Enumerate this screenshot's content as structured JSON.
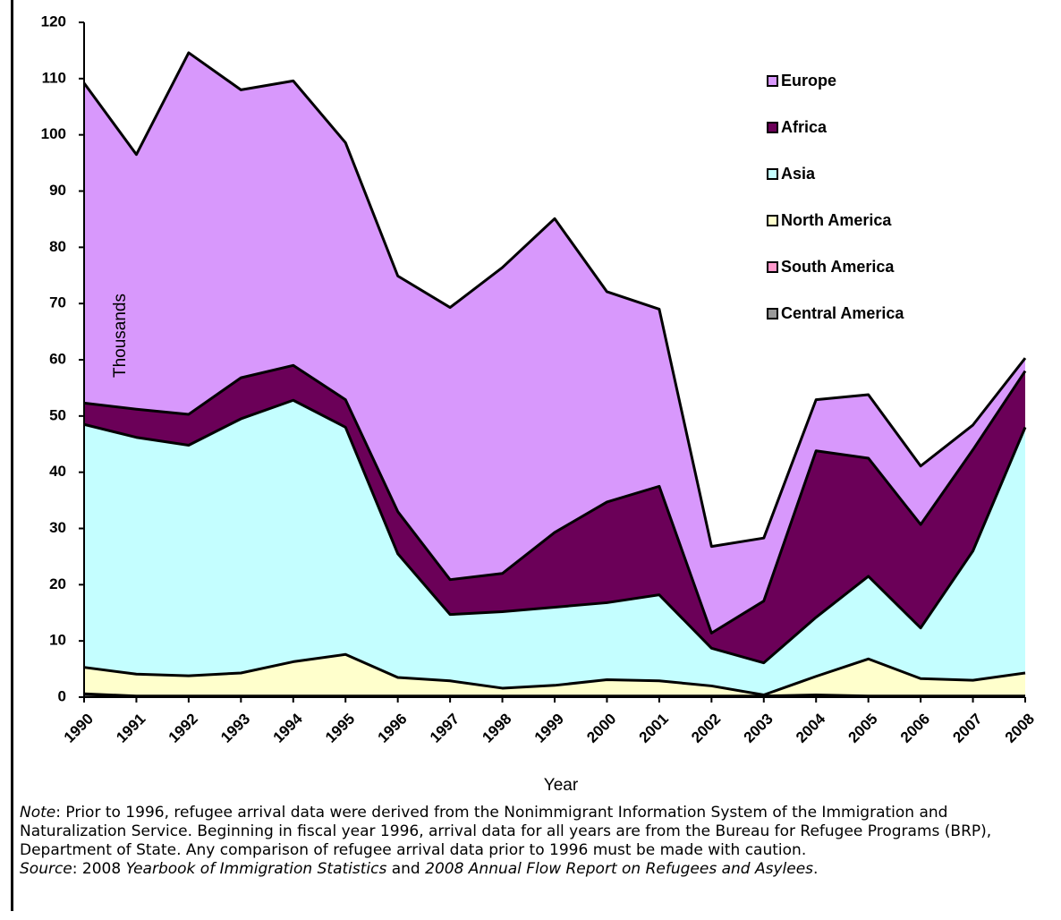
{
  "chart_data": {
    "type": "stacked_area",
    "x": [
      1990,
      1991,
      1992,
      1993,
      1994,
      1995,
      1996,
      1997,
      1998,
      1999,
      2000,
      2001,
      2002,
      2003,
      2004,
      2005,
      2006,
      2007,
      2008
    ],
    "xlim": [
      1990,
      2008
    ],
    "ylim": [
      0,
      120
    ],
    "yticks": [
      0,
      10,
      20,
      30,
      40,
      50,
      60,
      70,
      80,
      90,
      100,
      110,
      120
    ],
    "xlabel": "Year",
    "ylabel": "Thousands",
    "series": [
      {
        "name": "Europe",
        "color": "#d898fc",
        "values": [
          56.9,
          45.3,
          64.3,
          51.2,
          50.6,
          45.7,
          41.9,
          48.4,
          54.4,
          55.8,
          37.4,
          31.5,
          15.4,
          11.2,
          9.1,
          11.3,
          10.4,
          4.4,
          2.3
        ]
      },
      {
        "name": "Africa",
        "color": "#6b0058",
        "values": [
          3.8,
          5.0,
          5.5,
          7.3,
          6.2,
          4.9,
          7.5,
          6.2,
          6.8,
          13.3,
          17.9,
          19.3,
          2.7,
          11.0,
          29.6,
          21.0,
          18.4,
          18.0,
          10.0
        ]
      },
      {
        "name": "Asia",
        "color": "#c4feff",
        "values": [
          43.2,
          42.1,
          41.0,
          45.2,
          46.5,
          40.4,
          22.0,
          11.8,
          13.6,
          13.9,
          13.7,
          15.3,
          6.7,
          5.7,
          10.5,
          14.7,
          9.0,
          23.0,
          43.7
        ]
      },
      {
        "name": "North America",
        "color": "#ffffcc",
        "values": [
          4.7,
          3.9,
          3.6,
          4.1,
          6.1,
          7.4,
          3.3,
          2.7,
          1.4,
          1.9,
          2.9,
          2.7,
          1.8,
          0.2,
          3.3,
          6.6,
          3.1,
          2.8,
          4.1
        ]
      },
      {
        "name": "South America",
        "color": "#ff99cc",
        "values": [
          0.1,
          0.1,
          0.1,
          0.1,
          0.1,
          0.1,
          0.1,
          0.1,
          0.1,
          0.1,
          0.1,
          0.1,
          0.1,
          0.1,
          0.3,
          0.1,
          0.1,
          0.1,
          0.1
        ]
      },
      {
        "name": "Central America",
        "color": "#999999",
        "values": [
          0.5,
          0.1,
          0.1,
          0.1,
          0.1,
          0.1,
          0.1,
          0.1,
          0.1,
          0.1,
          0.1,
          0.1,
          0.1,
          0.1,
          0.1,
          0.1,
          0.1,
          0.1,
          0.1
        ]
      }
    ]
  },
  "note": [
    "Note",
    ": Prior to 1996, refugee arrival data were derived from the Nonimmigrant Information System of the Immigration and Naturalization Service. Beginning in fiscal year 1996, arrival data for all years are from the Bureau for Refugee Programs (BRP), Department of State. Any comparison of refugee arrival data prior to 1996 must be made with caution."
  ],
  "source": [
    "Source",
    ": 2008 ",
    "Yearbook of Immigration Statistics",
    " and ",
    "2008 Annual Flow Report on Refugees and Asylees",
    "."
  ]
}
